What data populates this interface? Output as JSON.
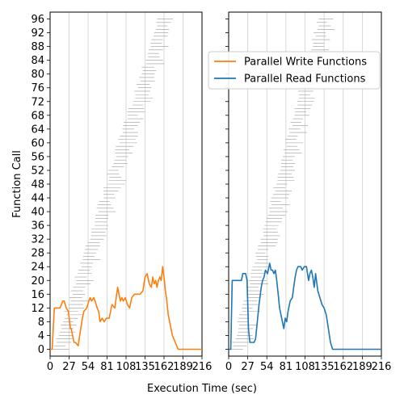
{
  "chart_data": [
    {
      "type": "line",
      "panel": "left",
      "xlabel": "",
      "ylabel": "Function Call",
      "xlim": [
        0,
        216
      ],
      "ylim": [
        -2,
        98
      ],
      "xticks": [
        0,
        27,
        54,
        81,
        108,
        135,
        162,
        189,
        216
      ],
      "yticks": [
        0,
        4,
        8,
        12,
        16,
        20,
        24,
        28,
        32,
        36,
        40,
        44,
        48,
        52,
        56,
        60,
        64,
        68,
        72,
        76,
        80,
        84,
        88,
        92,
        96
      ],
      "grid": "x",
      "series": [
        {
          "name": "Parallel Write Functions",
          "color": "#ff7f0e",
          "x": [
            0,
            3,
            6,
            10,
            14,
            18,
            20,
            23,
            26,
            29,
            30,
            34,
            36,
            40,
            42,
            46,
            48,
            52,
            55,
            57,
            59,
            62,
            64,
            67,
            69,
            71,
            74,
            77,
            80,
            84,
            88,
            92,
            94,
            96,
            98,
            100,
            102,
            104,
            107,
            110,
            113,
            116,
            120,
            124,
            128,
            132,
            135,
            138,
            141,
            144,
            146,
            148,
            150,
            152,
            154,
            156,
            158,
            160,
            162,
            164,
            166,
            168,
            171,
            174,
            178,
            182,
            186,
            190,
            216
          ],
          "y": [
            0,
            0,
            12,
            12,
            12,
            14,
            14,
            12,
            11,
            6,
            6,
            2,
            2,
            1,
            4,
            9,
            11,
            12,
            14,
            15,
            14,
            15,
            14,
            12,
            11,
            8,
            9,
            8,
            9,
            9,
            13,
            12,
            15,
            18,
            16,
            14,
            15,
            14,
            15,
            13,
            12,
            15,
            16,
            16,
            16,
            17,
            21,
            22,
            19,
            18,
            21,
            19,
            20,
            18,
            20,
            21,
            20,
            24,
            21,
            17,
            14,
            10,
            7,
            4,
            2,
            0,
            0,
            0,
            0
          ]
        }
      ]
    },
    {
      "type": "line",
      "panel": "right",
      "xlabel": "",
      "ylabel": "",
      "xlim": [
        0,
        216
      ],
      "ylim": [
        -2,
        98
      ],
      "xticks": [
        0,
        27,
        54,
        81,
        108,
        135,
        162,
        189,
        216
      ],
      "grid": "x",
      "series": [
        {
          "name": "Parallel Read Functions",
          "color": "#1f77b4",
          "x": [
            0,
            3,
            5,
            7,
            10,
            14,
            18,
            20,
            22,
            24,
            26,
            28,
            30,
            33,
            36,
            38,
            40,
            43,
            46,
            48,
            50,
            52,
            55,
            58,
            60,
            62,
            64,
            66,
            68,
            70,
            72,
            74,
            76,
            78,
            80,
            82,
            84,
            87,
            90,
            92,
            94,
            96,
            98,
            100,
            102,
            104,
            107,
            110,
            113,
            115,
            117,
            119,
            121,
            123,
            126,
            129,
            132,
            135,
            138,
            141,
            144,
            147,
            150,
            216
          ],
          "y": [
            0,
            0,
            20,
            20,
            20,
            20,
            20,
            22,
            22,
            22,
            20,
            6,
            2,
            2,
            2,
            3,
            7,
            13,
            18,
            20,
            21,
            23,
            22,
            25,
            23,
            23,
            22,
            23,
            20,
            16,
            12,
            10,
            8,
            6,
            9,
            8,
            11,
            14,
            15,
            18,
            21,
            23,
            24,
            24,
            24,
            23,
            24,
            24,
            20,
            22,
            23,
            21,
            18,
            22,
            17,
            15,
            13,
            12,
            10,
            6,
            2,
            0,
            0,
            0
          ]
        }
      ]
    }
  ],
  "shared": {
    "xlabel": "Execution Time (sec)"
  }
}
